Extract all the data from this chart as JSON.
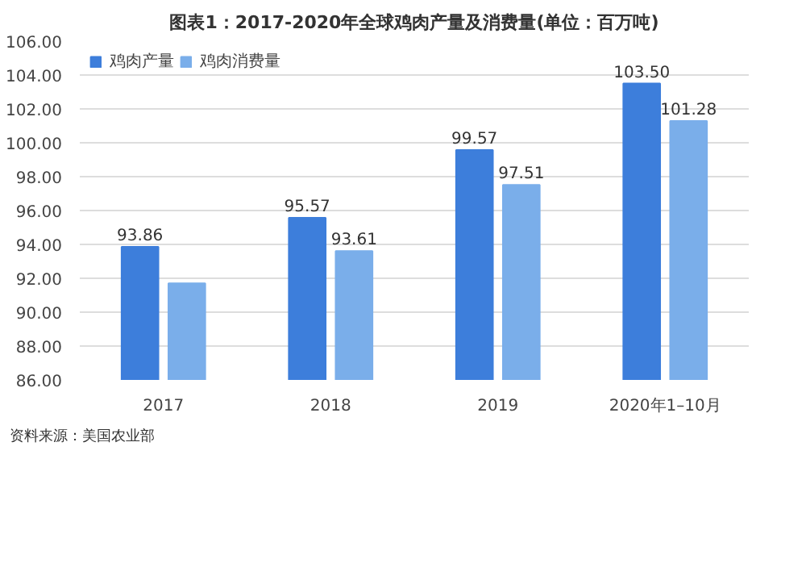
{
  "chart_data": {
    "type": "bar",
    "title": "图表1：2017-2020年全球鸡肉产量及消费量(单位：百万吨)",
    "categories": [
      "2017",
      "2018",
      "2019",
      "2020年1–10月"
    ],
    "series": [
      {
        "name": "鸡肉产量",
        "color": "#3d7edb",
        "values": [
          93.86,
          95.57,
          99.57,
          103.5
        ],
        "value_labels": [
          "93.86",
          "95.57",
          "99.57",
          "103.50"
        ]
      },
      {
        "name": "鸡肉消费量",
        "color": "#7aaeea",
        "values": [
          91.7,
          93.61,
          97.51,
          101.28
        ],
        "value_labels": [
          null,
          "93.61",
          "97.51",
          "101.28"
        ]
      }
    ],
    "ylim": [
      86,
      106
    ],
    "yticks": [
      {
        "value": 86,
        "label": "86.00"
      },
      {
        "value": 88,
        "label": "88.00"
      },
      {
        "value": 90,
        "label": "90.00"
      },
      {
        "value": 92,
        "label": "92.00"
      },
      {
        "value": 94,
        "label": "94.00"
      },
      {
        "value": 96,
        "label": "96.00"
      },
      {
        "value": 98,
        "label": "98.00"
      },
      {
        "value": 100,
        "label": "100.00"
      },
      {
        "value": 102,
        "label": "102.00"
      },
      {
        "value": 104,
        "label": "104.00"
      },
      {
        "value": 106,
        "label": "106.00"
      }
    ],
    "grid": "y",
    "legend": "top left",
    "annotations": [
      "资料来源：美国农业部"
    ]
  }
}
